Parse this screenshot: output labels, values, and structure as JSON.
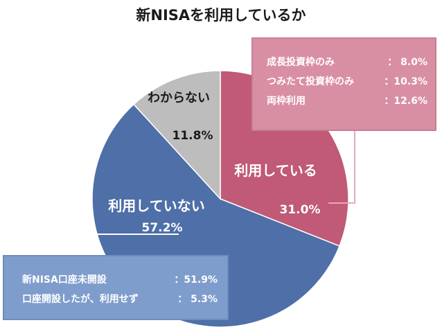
{
  "title": "新NISAを利用しているか",
  "colors": {
    "used": "#c05a76",
    "not_used": "#4e6fa7",
    "unknown": "#bdbdbd",
    "used_box": "#d98fa3",
    "not_used_box": "#7e9dcc",
    "connector": "#e7a9b9"
  },
  "chart_data": {
    "type": "pie",
    "title": "新NISAを利用しているか",
    "start": "12 o'clock, clockwise",
    "slices": [
      {
        "label": "利用している",
        "value": 31.0,
        "value_label": "31.0%",
        "color": "#c05a76"
      },
      {
        "label": "利用していない",
        "value": 57.2,
        "value_label": "57.2%",
        "color": "#4e6fa7"
      },
      {
        "label": "わからない",
        "value": 11.8,
        "value_label": "11.8%",
        "color": "#bdbdbd"
      }
    ],
    "breakdowns": {
      "利用している": [
        {
          "label": "成長投資枠のみ",
          "sep": "：",
          "value": 8.0,
          "value_label": "8.0%"
        },
        {
          "label": "つみたて投資枠のみ",
          "sep": "：",
          "value": 10.3,
          "value_label": "10.3%"
        },
        {
          "label": "両枠利用",
          "sep": "：",
          "value": 12.6,
          "value_label": "12.6%"
        }
      ],
      "利用していない": [
        {
          "label": "新NISA口座未開設",
          "sep": "：",
          "value": 51.9,
          "value_label": "51.9%"
        },
        {
          "label": "口座開設したが、利用せず",
          "sep": "：",
          "value": 5.3,
          "value_label": "5.3%"
        }
      ]
    }
  },
  "used_box_rows": [
    {
      "label": "成長投資枠のみ",
      "value": "：  8.0%"
    },
    {
      "label": "つみたて投資枠のみ",
      "value": "：10.3%"
    },
    {
      "label": "両枠利用",
      "value": "：12.6%"
    }
  ],
  "not_used_box_rows": [
    {
      "label": "新NISA口座未開設",
      "value": "：51.9%"
    },
    {
      "label": "口座開設したが、利用せず",
      "value": "：  5.3%"
    }
  ]
}
